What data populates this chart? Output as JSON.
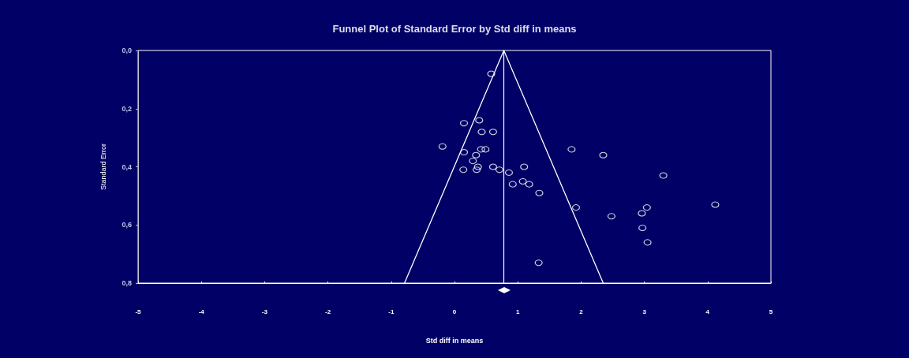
{
  "chart_data": {
    "type": "scatter",
    "title": "Funnel Plot of Standard Error by Std diff in means",
    "xlabel": "Std diff in means",
    "ylabel": "Standard Error",
    "xlim": [
      -5,
      5
    ],
    "xticks": [
      -5,
      -4,
      -3,
      -2,
      -1,
      0,
      1,
      2,
      3,
      4,
      5
    ],
    "ylim": [
      0.8,
      0
    ],
    "yticks": [
      {
        "value": 0,
        "label": "0,0"
      },
      {
        "value": 0.2,
        "label": "0,2"
      },
      {
        "value": 0.4,
        "label": "0,4"
      },
      {
        "value": 0.6,
        "label": "0,6"
      },
      {
        "value": 0.8,
        "label": "0,8"
      }
    ],
    "marker": "circle",
    "grid": false,
    "series": [
      {
        "type": "scatter",
        "color": "#ffffff",
        "x": [
          0.58,
          0.15,
          0.39,
          0.43,
          0.61,
          -0.19,
          0.42,
          0.49,
          0.15,
          0.34,
          0.29,
          0.14,
          0.37,
          0.35,
          0.61,
          0.71,
          0.86,
          1.1,
          0.92,
          1.08,
          1.18,
          1.34,
          1.33,
          1.85,
          2.35,
          1.92,
          2.48,
          3.3,
          3.04,
          2.96,
          2.97,
          3.05,
          4.12
        ],
        "values": [
          0.08,
          0.25,
          0.24,
          0.28,
          0.28,
          0.33,
          0.34,
          0.34,
          0.35,
          0.36,
          0.38,
          0.41,
          0.4,
          0.41,
          0.4,
          0.41,
          0.42,
          0.4,
          0.46,
          0.45,
          0.46,
          0.49,
          0.73,
          0.34,
          0.36,
          0.54,
          0.57,
          0.43,
          0.54,
          0.56,
          0.61,
          0.66,
          0.53
        ]
      },
      {
        "type": "line",
        "color": "#ffffff",
        "marker": "none",
        "line_style": "solid",
        "x": [
          -0.79,
          0.78,
          2.35
        ],
        "values": [
          0.8,
          0,
          0.8
        ]
      }
    ],
    "ref_lines": [
      {
        "axis": "x",
        "value": 0.78,
        "color": "#ffffff",
        "line_style": "solid"
      }
    ]
  }
}
